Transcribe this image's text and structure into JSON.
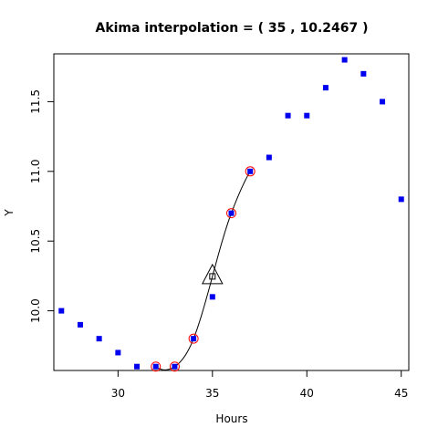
{
  "chart_data": {
    "type": "scatter",
    "title": "Akima interpolation = ( 35 , 10.2467 )",
    "xlabel": "Hours",
    "ylabel": "Y",
    "xlim": [
      26.6,
      45.4
    ],
    "ylim": [
      9.572,
      11.843
    ],
    "xticks": [
      30,
      35,
      40,
      45
    ],
    "yticks": [
      10.0,
      10.5,
      11.0,
      11.5
    ],
    "ytick_labels": [
      "10.0",
      "10.5",
      "11.0",
      "11.5"
    ],
    "grid": false,
    "colors": {
      "points": "#0000ee",
      "highlight": "#ff0000",
      "curve": "#000000"
    },
    "points": {
      "x": [
        27,
        28,
        29,
        30,
        31,
        32,
        33,
        34,
        35,
        36,
        37,
        38,
        39,
        40,
        41,
        42,
        43,
        44,
        45
      ],
      "y": [
        10.0,
        9.9,
        9.8,
        9.7,
        9.6,
        9.6,
        9.6,
        9.8,
        10.1,
        10.7,
        11.0,
        11.1,
        11.4,
        11.4,
        11.6,
        11.8,
        11.7,
        11.5,
        10.8
      ]
    },
    "highlighted_points": {
      "x": [
        32,
        33,
        34,
        36,
        37
      ],
      "y": [
        9.6,
        9.6,
        9.8,
        10.7,
        11.0
      ]
    },
    "interpolated_point": {
      "x": 35,
      "y": 10.2467
    }
  }
}
